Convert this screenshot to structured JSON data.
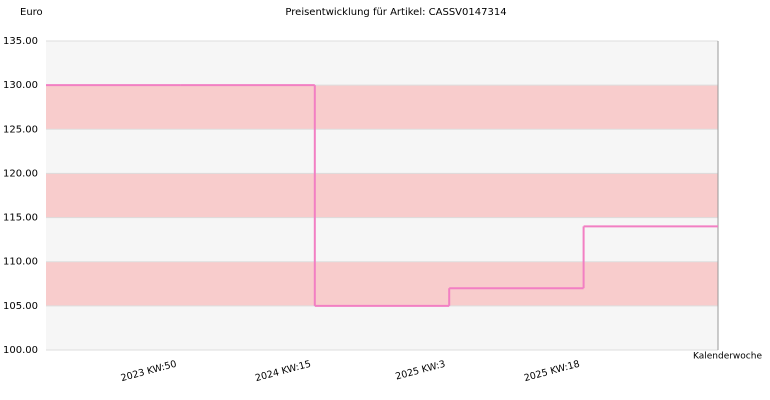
{
  "chart_data": {
    "type": "step",
    "title": "Preisentwicklung für Artikel: CASSV0147314",
    "y_label": "Euro",
    "x_label": "Kalenderwoche",
    "categories": [
      null,
      "2023 KW:50",
      "2024 KW:15",
      "2025 KW:3",
      "2025 KW:18"
    ],
    "values": [
      130,
      130,
      105,
      107,
      114
    ],
    "color": "#f27fc3",
    "band_colors": [
      "#f6f6f6",
      "#f8cccc"
    ],
    "ylim": [
      100,
      135
    ],
    "yticks": [
      {
        "value": 100,
        "label": "100.00"
      },
      {
        "value": 105,
        "label": "105.00"
      },
      {
        "value": 110,
        "label": "110.00"
      },
      {
        "value": 115,
        "label": "115.00"
      },
      {
        "value": 120,
        "label": "120.00"
      },
      {
        "value": 125,
        "label": "125.00"
      },
      {
        "value": 130,
        "label": "130.00"
      },
      {
        "value": 135,
        "label": "135.00"
      }
    ]
  }
}
